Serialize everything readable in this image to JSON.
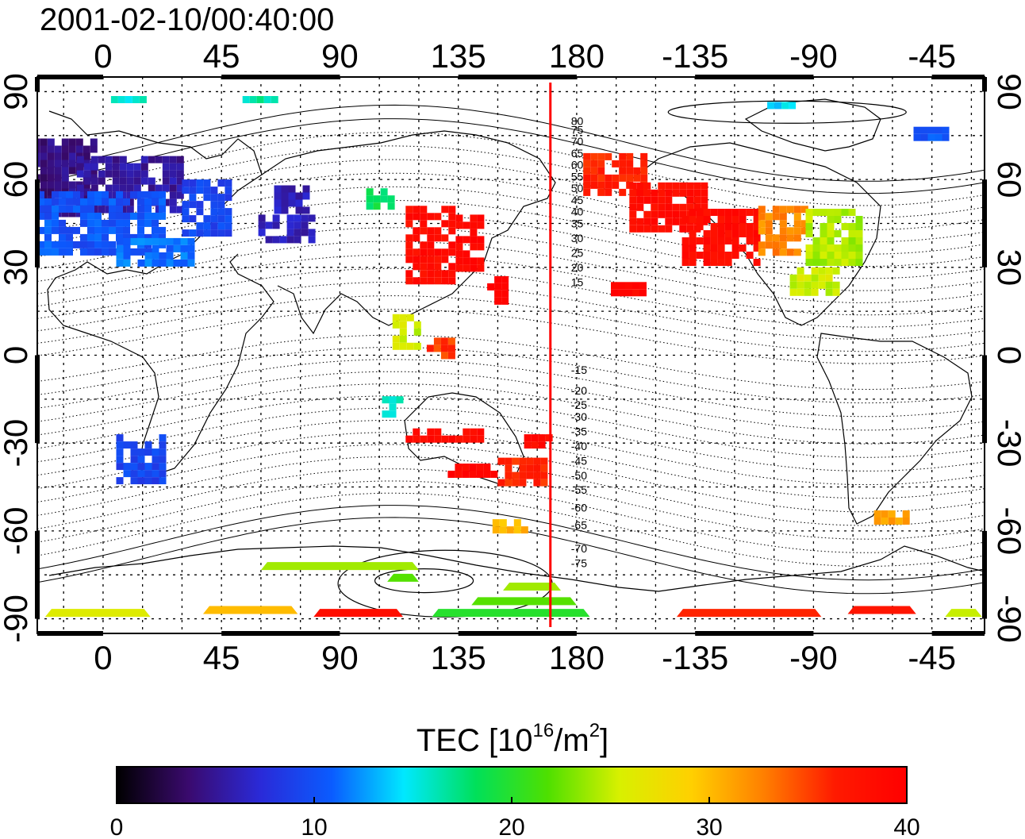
{
  "title": "2001-02-10/00:40:00",
  "map": {
    "lon_range": [
      -25,
      335
    ],
    "lat_range": [
      -95,
      95
    ],
    "lon_ticks": [
      "0",
      "45",
      "90",
      "135",
      "180",
      "-135",
      "-90",
      "-45"
    ],
    "lon_tick_values": [
      0,
      45,
      90,
      135,
      180,
      225,
      270,
      315
    ],
    "lat_ticks": [
      "90",
      "60",
      "30",
      "0",
      "-30",
      "-60",
      "-90"
    ],
    "lat_tick_values": [
      90,
      60,
      30,
      0,
      -30,
      -60,
      -90
    ],
    "meridian_marker_lon": 170,
    "marker_color": "#ff0000",
    "contour_labels": [
      "80",
      "75",
      "70",
      "65",
      "60",
      "55",
      "50",
      "45",
      "40",
      "35",
      "30",
      "25",
      "20",
      "15",
      "-15",
      "-20",
      "-25",
      "-30",
      "-35",
      "-40",
      "-45",
      "-50",
      "-55",
      "-60",
      "-65",
      "-70",
      "-75"
    ],
    "contour_label_lats": [
      80,
      77,
      73,
      69,
      65,
      61,
      57,
      53,
      49,
      45,
      40,
      35,
      30,
      25,
      -5,
      -12,
      -17,
      -21,
      -26,
      -31,
      -36,
      -41,
      -46,
      -52,
      -58,
      -66,
      -71
    ],
    "tec_patches": [
      {
        "lon": -17,
        "lat": 60,
        "w": 30,
        "h": 28,
        "tec": 4
      },
      {
        "lon": 10,
        "lat": 58,
        "w": 40,
        "h": 20,
        "tec": 5
      },
      {
        "lon": 0,
        "lat": 45,
        "w": 50,
        "h": 22,
        "tec": 10
      },
      {
        "lon": 20,
        "lat": 35,
        "w": 30,
        "h": 10,
        "tec": 11
      },
      {
        "lon": 40,
        "lat": 50,
        "w": 20,
        "h": 20,
        "tec": 9
      },
      {
        "lon": 72,
        "lat": 53,
        "w": 14,
        "h": 10,
        "tec": 6
      },
      {
        "lon": 70,
        "lat": 43,
        "w": 22,
        "h": 10,
        "tec": 6
      },
      {
        "lon": 105,
        "lat": 53,
        "w": 10,
        "h": 8,
        "tec": 18
      },
      {
        "lon": 125,
        "lat": 38,
        "w": 20,
        "h": 26,
        "tec": 38
      },
      {
        "lon": 140,
        "lat": 38,
        "w": 12,
        "h": 20,
        "tec": 39
      },
      {
        "lon": 150,
        "lat": 22,
        "w": 8,
        "h": 10,
        "tec": 39
      },
      {
        "lon": 115,
        "lat": 8,
        "w": 10,
        "h": 12,
        "tec": 25
      },
      {
        "lon": 128,
        "lat": 2,
        "w": 10,
        "h": 8,
        "tec": 35
      },
      {
        "lon": 110,
        "lat": -18,
        "w": 8,
        "h": 8,
        "tec": 16
      },
      {
        "lon": 130,
        "lat": -28,
        "w": 30,
        "h": 6,
        "tec": 38
      },
      {
        "lon": 140,
        "lat": -40,
        "w": 18,
        "h": 6,
        "tec": 39
      },
      {
        "lon": 160,
        "lat": -40,
        "w": 20,
        "h": 10,
        "tec": 36
      },
      {
        "lon": 165,
        "lat": -30,
        "w": 10,
        "h": 6,
        "tec": 38
      },
      {
        "lon": 155,
        "lat": -58,
        "w": 14,
        "h": 4,
        "tec": 30
      },
      {
        "lon": 15,
        "lat": -35,
        "w": 20,
        "h": 16,
        "tec": 9
      },
      {
        "lon": 195,
        "lat": 62,
        "w": 25,
        "h": 14,
        "tec": 36
      },
      {
        "lon": 215,
        "lat": 50,
        "w": 30,
        "h": 18,
        "tec": 38
      },
      {
        "lon": 235,
        "lat": 40,
        "w": 30,
        "h": 20,
        "tec": 38
      },
      {
        "lon": 258,
        "lat": 42,
        "w": 18,
        "h": 18,
        "tec": 32
      },
      {
        "lon": 278,
        "lat": 40,
        "w": 22,
        "h": 20,
        "tec": 24
      },
      {
        "lon": 270,
        "lat": 25,
        "w": 18,
        "h": 10,
        "tec": 25
      },
      {
        "lon": 200,
        "lat": 22,
        "w": 14,
        "h": 6,
        "tec": 39
      },
      {
        "lon": 300,
        "lat": -55,
        "w": 14,
        "h": 4,
        "tec": 31
      },
      {
        "lon": 315,
        "lat": 75,
        "w": 14,
        "h": 6,
        "tec": 10
      },
      {
        "lon": 255,
        "lat": 85,
        "w": 16,
        "h": 3,
        "tec": 14
      },
      {
        "lon": 10,
        "lat": 87,
        "w": 14,
        "h": 3,
        "tec": 15
      },
      {
        "lon": 60,
        "lat": 87,
        "w": 14,
        "h": 3,
        "tec": 16
      }
    ],
    "tec_bands": [
      {
        "lon": -22,
        "lat": -88,
        "w": 40,
        "tec": 26
      },
      {
        "lon": 38,
        "lat": -87,
        "w": 36,
        "tec": 30
      },
      {
        "lon": 80,
        "lat": -88,
        "w": 34,
        "tec": 38
      },
      {
        "lon": 125,
        "lat": -88,
        "w": 60,
        "tec": 20
      },
      {
        "lon": 140,
        "lat": -84,
        "w": 40,
        "tec": 22
      },
      {
        "lon": 218,
        "lat": -88,
        "w": 55,
        "tec": 36
      },
      {
        "lon": 283,
        "lat": -87,
        "w": 26,
        "tec": 37
      },
      {
        "lon": 320,
        "lat": -88,
        "w": 14,
        "tec": 25
      },
      {
        "lon": 60,
        "lat": -72,
        "w": 60,
        "tec": 24
      },
      {
        "lon": 108,
        "lat": -76,
        "w": 12,
        "tec": 22
      },
      {
        "lon": 152,
        "lat": -79,
        "w": 22,
        "tec": 24
      }
    ]
  },
  "colorbar": {
    "title": "TEC  [10",
    "title_sup1": "16",
    "title_mid": "/m",
    "title_sup2": "2",
    "title_end": "]",
    "min": 0,
    "max": 40,
    "ticks": [
      "0",
      "10",
      "20",
      "30",
      "40"
    ],
    "tick_values": [
      0,
      10,
      20,
      30,
      40
    ],
    "stops": [
      "#000000",
      "#3a0a6e",
      "#2a2ad8",
      "#0a5cff",
      "#00e8ff",
      "#00e05a",
      "#4ee000",
      "#d8f000",
      "#ffd000",
      "#ff8000",
      "#ff1a00",
      "#ff0000"
    ]
  }
}
